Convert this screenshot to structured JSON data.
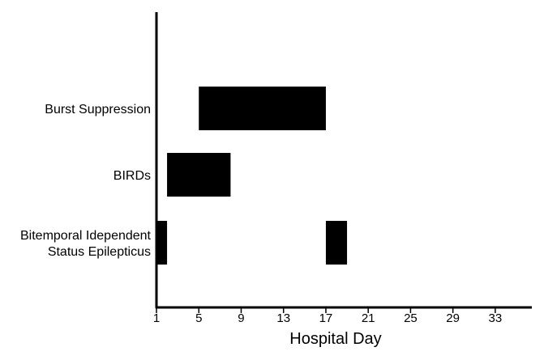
{
  "chart_data": {
    "type": "bar",
    "orientation": "horizontal-range",
    "title": "",
    "xlabel": "Hospital Day",
    "ylabel": "",
    "xlim": [
      1,
      35
    ],
    "xticks": [
      1,
      5,
      9,
      13,
      17,
      21,
      25,
      29,
      33
    ],
    "grid": false,
    "bar_color": "#000000",
    "categories": [
      {
        "label_lines": [
          "Burst Suppression"
        ]
      },
      {
        "label_lines": [
          "BIRDs"
        ]
      },
      {
        "label_lines": [
          "Bitemporal Idependent",
          "Status Epilepticus"
        ]
      }
    ],
    "bars": [
      {
        "category": 0,
        "start": 5,
        "end": 17
      },
      {
        "category": 1,
        "start": 2,
        "end": 8
      },
      {
        "category": 2,
        "start": 1,
        "end": 2
      },
      {
        "category": 2,
        "start": 17,
        "end": 19
      }
    ]
  }
}
